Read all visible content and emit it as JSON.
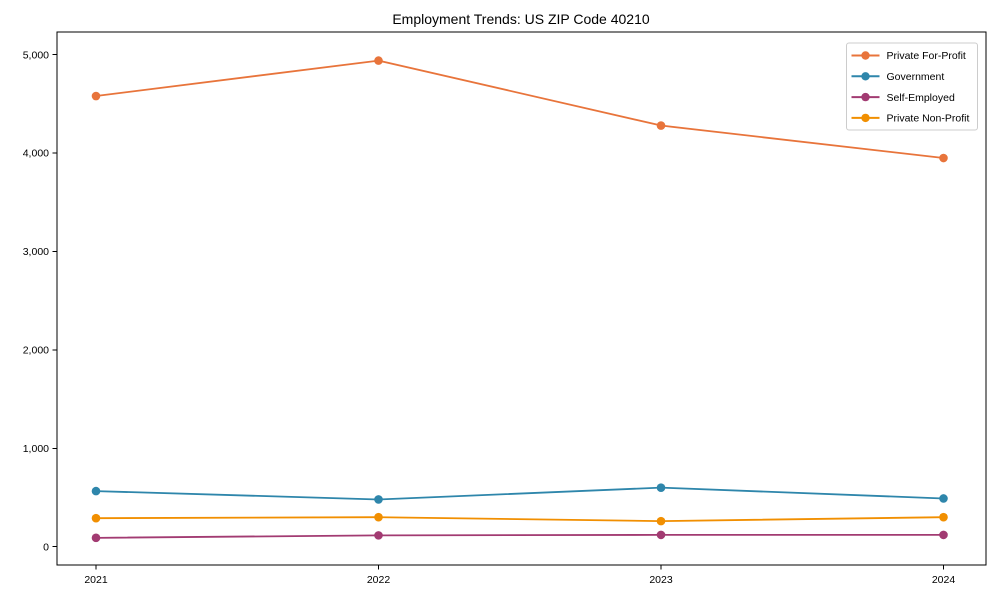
{
  "figure": {
    "title": "Employment Trends: US ZIP Code 40210"
  },
  "chart_data": {
    "type": "line",
    "title": "Employment Trends: US ZIP Code 40210",
    "xlabel": "",
    "ylabel": "",
    "categories": [
      "2021",
      "2022",
      "2023",
      "2024"
    ],
    "series": [
      {
        "name": "Private For-Profit",
        "color": "#E8743B",
        "values": [
          4580,
          4940,
          4280,
          3950
        ]
      },
      {
        "name": "Government",
        "color": "#2E86AB",
        "values": [
          565,
          480,
          600,
          490
        ]
      },
      {
        "name": "Self-Employed",
        "color": "#A23B72",
        "values": [
          90,
          115,
          120,
          120
        ]
      },
      {
        "name": "Private Non-Profit",
        "color": "#F18F01",
        "values": [
          290,
          300,
          260,
          300
        ]
      }
    ],
    "ylim": [
      0,
      5000
    ],
    "yticks": [
      0,
      1000,
      2000,
      3000,
      4000,
      5000
    ],
    "ytick_labels": [
      "0",
      "1,000",
      "2,000",
      "3,000",
      "4,000",
      "5,000"
    ],
    "grid": false,
    "legend_position": "upper-right",
    "axis_color": "#000000",
    "legend_border_color": "#cccccc",
    "legend_background": "#ffffff",
    "marker": "circle"
  }
}
